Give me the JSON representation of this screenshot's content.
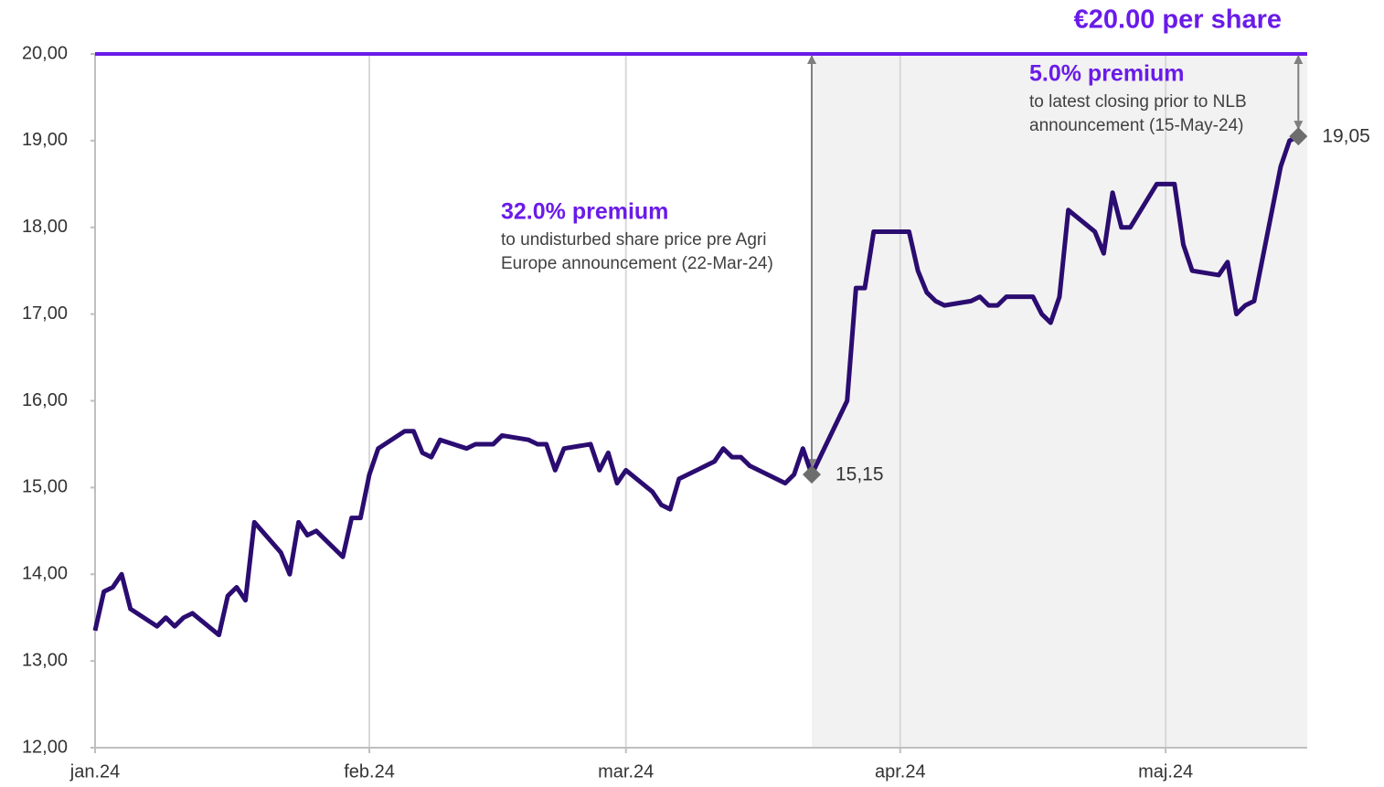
{
  "chart_data": {
    "type": "line",
    "xlim": [
      0,
      137
    ],
    "xticks": [
      {
        "value": 0,
        "label": "jan.24"
      },
      {
        "value": 31,
        "label": "feb.24"
      },
      {
        "value": 60,
        "label": "mar.24"
      },
      {
        "value": 91,
        "label": "apr.24"
      },
      {
        "value": 121,
        "label": "maj.24"
      }
    ],
    "ylim": [
      12,
      20
    ],
    "yticks": [
      {
        "value": 12,
        "label": "12,00"
      },
      {
        "value": 13,
        "label": "13,00"
      },
      {
        "value": 14,
        "label": "14,00"
      },
      {
        "value": 15,
        "label": "15,00"
      },
      {
        "value": 16,
        "label": "16,00"
      },
      {
        "value": 17,
        "label": "17,00"
      },
      {
        "value": 18,
        "label": "18,00"
      },
      {
        "value": 19,
        "label": "19,00"
      },
      {
        "value": 20,
        "label": "20,00"
      }
    ],
    "grid": "x",
    "highlight_start": 81,
    "x": [
      0,
      1,
      2,
      3,
      4,
      7,
      8,
      9,
      10,
      11,
      14,
      15,
      16,
      17,
      18,
      21,
      22,
      23,
      24,
      25,
      28,
      29,
      30,
      31,
      32,
      35,
      36,
      37,
      38,
      39,
      42,
      43,
      45,
      46,
      49,
      50,
      51,
      52,
      53,
      56,
      57,
      58,
      59,
      60,
      63,
      64,
      65,
      66,
      70,
      71,
      72,
      73,
      74,
      78,
      79,
      80,
      81,
      85,
      86,
      87,
      88,
      92,
      93,
      94,
      95,
      96,
      99,
      100,
      101,
      102,
      103,
      106,
      107,
      108,
      109,
      110,
      113,
      114,
      115,
      116,
      117,
      120,
      122,
      123,
      124,
      127,
      128,
      129,
      130,
      131,
      134,
      135,
      136
    ],
    "series": [
      {
        "color": "#2b0c70",
        "values": [
          13.35,
          13.8,
          13.85,
          14.0,
          13.6,
          13.4,
          13.5,
          13.4,
          13.5,
          13.55,
          13.3,
          13.75,
          13.85,
          13.7,
          14.6,
          14.25,
          14.0,
          14.6,
          14.45,
          14.5,
          14.2,
          14.65,
          14.65,
          15.15,
          15.45,
          15.65,
          15.65,
          15.4,
          15.35,
          15.55,
          15.45,
          15.5,
          15.5,
          15.6,
          15.55,
          15.5,
          15.5,
          15.2,
          15.45,
          15.5,
          15.2,
          15.4,
          15.05,
          15.2,
          14.95,
          14.8,
          14.75,
          15.1,
          15.3,
          15.45,
          15.35,
          15.35,
          15.25,
          15.05,
          15.15,
          15.45,
          15.15,
          16.0,
          17.3,
          17.3,
          17.95,
          17.95,
          17.5,
          17.25,
          17.15,
          17.1,
          17.15,
          17.2,
          17.1,
          17.1,
          17.2,
          17.2,
          17.0,
          16.9,
          17.2,
          18.2,
          17.95,
          17.7,
          18.4,
          18.0,
          18.0,
          18.5,
          18.5,
          17.8,
          17.5,
          17.45,
          17.6,
          17.0,
          17.1,
          17.15,
          18.7,
          19.0,
          19.05
        ]
      }
    ],
    "markers": {
      "color": "#6d6d6d",
      "x": [
        81,
        136
      ],
      "values": [
        15.15,
        19.05
      ],
      "value_labels": [
        "15,15",
        "19,05"
      ]
    },
    "reference_line": {
      "value": 20,
      "label": "€20.00 per share",
      "color": "#6a1be8"
    },
    "annotations": [
      {
        "title": "32.0% premium",
        "lines": [
          "to undisturbed share price pre Agri",
          "Europe announcement (22-Mar-24)"
        ]
      },
      {
        "title": "5.0% premium",
        "lines": [
          "to latest closing prior to NLB",
          "announcement (15-May-24)"
        ]
      }
    ]
  }
}
